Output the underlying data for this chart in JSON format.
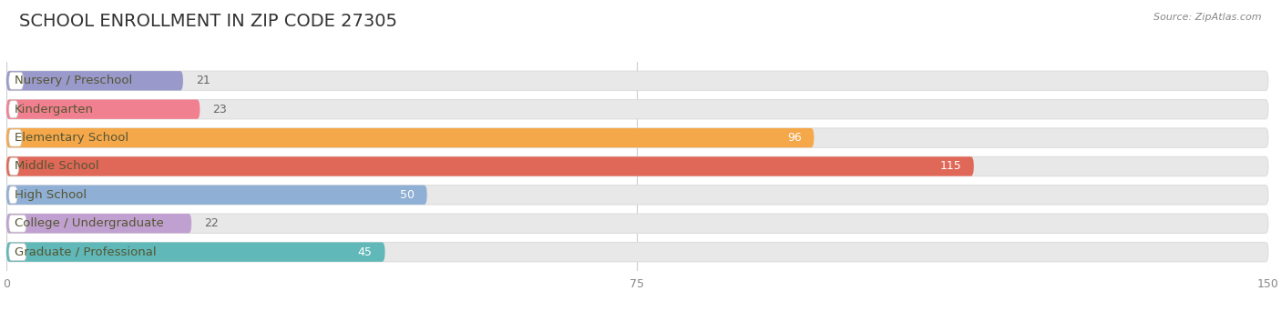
{
  "title": "SCHOOL ENROLLMENT IN ZIP CODE 27305",
  "source": "Source: ZipAtlas.com",
  "categories": [
    "Nursery / Preschool",
    "Kindergarten",
    "Elementary School",
    "Middle School",
    "High School",
    "College / Undergraduate",
    "Graduate / Professional"
  ],
  "values": [
    21,
    23,
    96,
    115,
    50,
    22,
    45
  ],
  "bar_colors": [
    "#9999cc",
    "#f08090",
    "#f5a84a",
    "#e06858",
    "#8fafd4",
    "#c0a0d0",
    "#60b8b8"
  ],
  "bar_bg_color": "#e8e8e8",
  "xlim": [
    0,
    150
  ],
  "xticks": [
    0,
    75,
    150
  ],
  "title_fontsize": 14,
  "label_fontsize": 9.5,
  "value_fontsize": 9,
  "bg_color": "#ffffff",
  "label_color": "#555533",
  "large_value_threshold": 40
}
